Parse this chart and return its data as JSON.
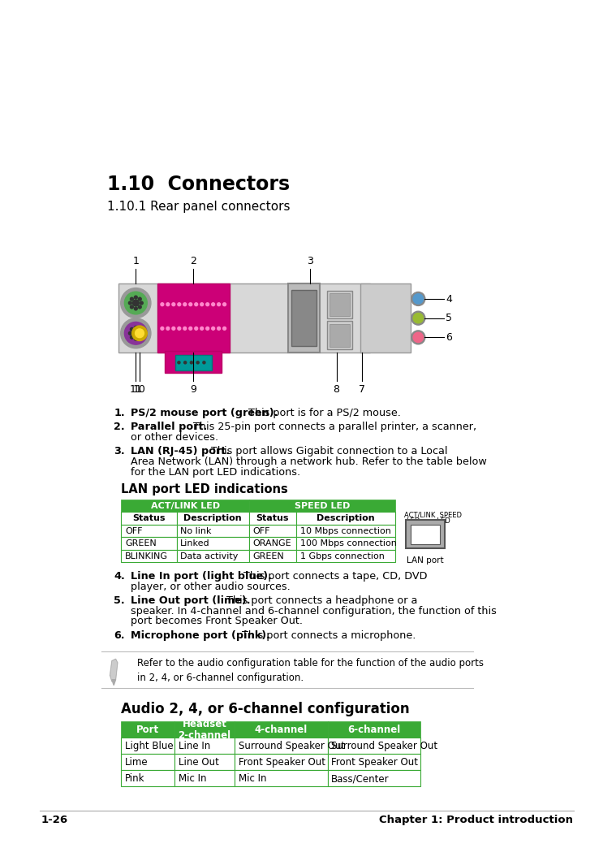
{
  "title_section": "1.10  Connectors",
  "subtitle_section": "1.10.1 Rear panel connectors",
  "bullet_items": [
    {
      "num": "1.",
      "bold": "PS/2 mouse port (green).",
      "text": " This port is for a PS/2 mouse.",
      "lines": 1
    },
    {
      "num": "2.",
      "bold": "Parallel port.",
      "text": " This 25-pin port connects a parallel printer, a scanner,\nor other devices.",
      "lines": 2
    },
    {
      "num": "3.",
      "bold": "LAN (RJ-45) port.",
      "text": " This port allows Gigabit connection to a Local\nArea Network (LAN) through a network hub. Refer to the table below\nfor the LAN port LED indications.",
      "lines": 3
    },
    {
      "num": "4.",
      "bold": "Line In port (light blue).",
      "text": " This port connects a tape, CD, DVD\nplayer, or other audio sources.",
      "lines": 2
    },
    {
      "num": "5.",
      "bold": "Line Out port (lime).",
      "text": " This port connects a headphone or a\nspeaker. In 4-channel and 6-channel configuration, the function of this\nport becomes Front Speaker Out.",
      "lines": 3
    },
    {
      "num": "6.",
      "bold": "Microphone port (pink).",
      "text": " This port connects a microphone.",
      "lines": 1
    }
  ],
  "lan_title": "LAN port LED indications",
  "lan_col1_header": "ACT/LINK LED",
  "lan_col2_header": "SPEED LED",
  "lan_subheaders": [
    "Status",
    "Description",
    "Status",
    "Description"
  ],
  "lan_rows": [
    [
      "OFF",
      "No link",
      "OFF",
      "10 Mbps connection"
    ],
    [
      "GREEN",
      "Linked",
      "ORANGE",
      "100 Mbps connection"
    ],
    [
      "BLINKING",
      "Data activity",
      "GREEN",
      "1 Gbps connection"
    ]
  ],
  "lan_port_label": "LAN port",
  "note_text": "Refer to the audio configuration table for the function of the audio ports\nin 2, 4, or 6-channel configuration.",
  "audio_title": "Audio 2, 4, or 6-channel configuration",
  "audio_headers": [
    "Port",
    "Headset\n2-channel",
    "4-channel",
    "6-channel"
  ],
  "audio_rows": [
    [
      "Light Blue",
      "Line In",
      "Surround Speaker Out",
      "Surround Speaker Out"
    ],
    [
      "Lime",
      "Line Out",
      "Front Speaker Out",
      "Front Speaker Out"
    ],
    [
      "Pink",
      "Mic In",
      "Mic In",
      "Bass/Center"
    ]
  ],
  "footer_left": "1-26",
  "footer_right": "Chapter 1: Product introduction",
  "bg_color": "#ffffff",
  "text_color": "#000000",
  "green_color": "#3aaa35"
}
